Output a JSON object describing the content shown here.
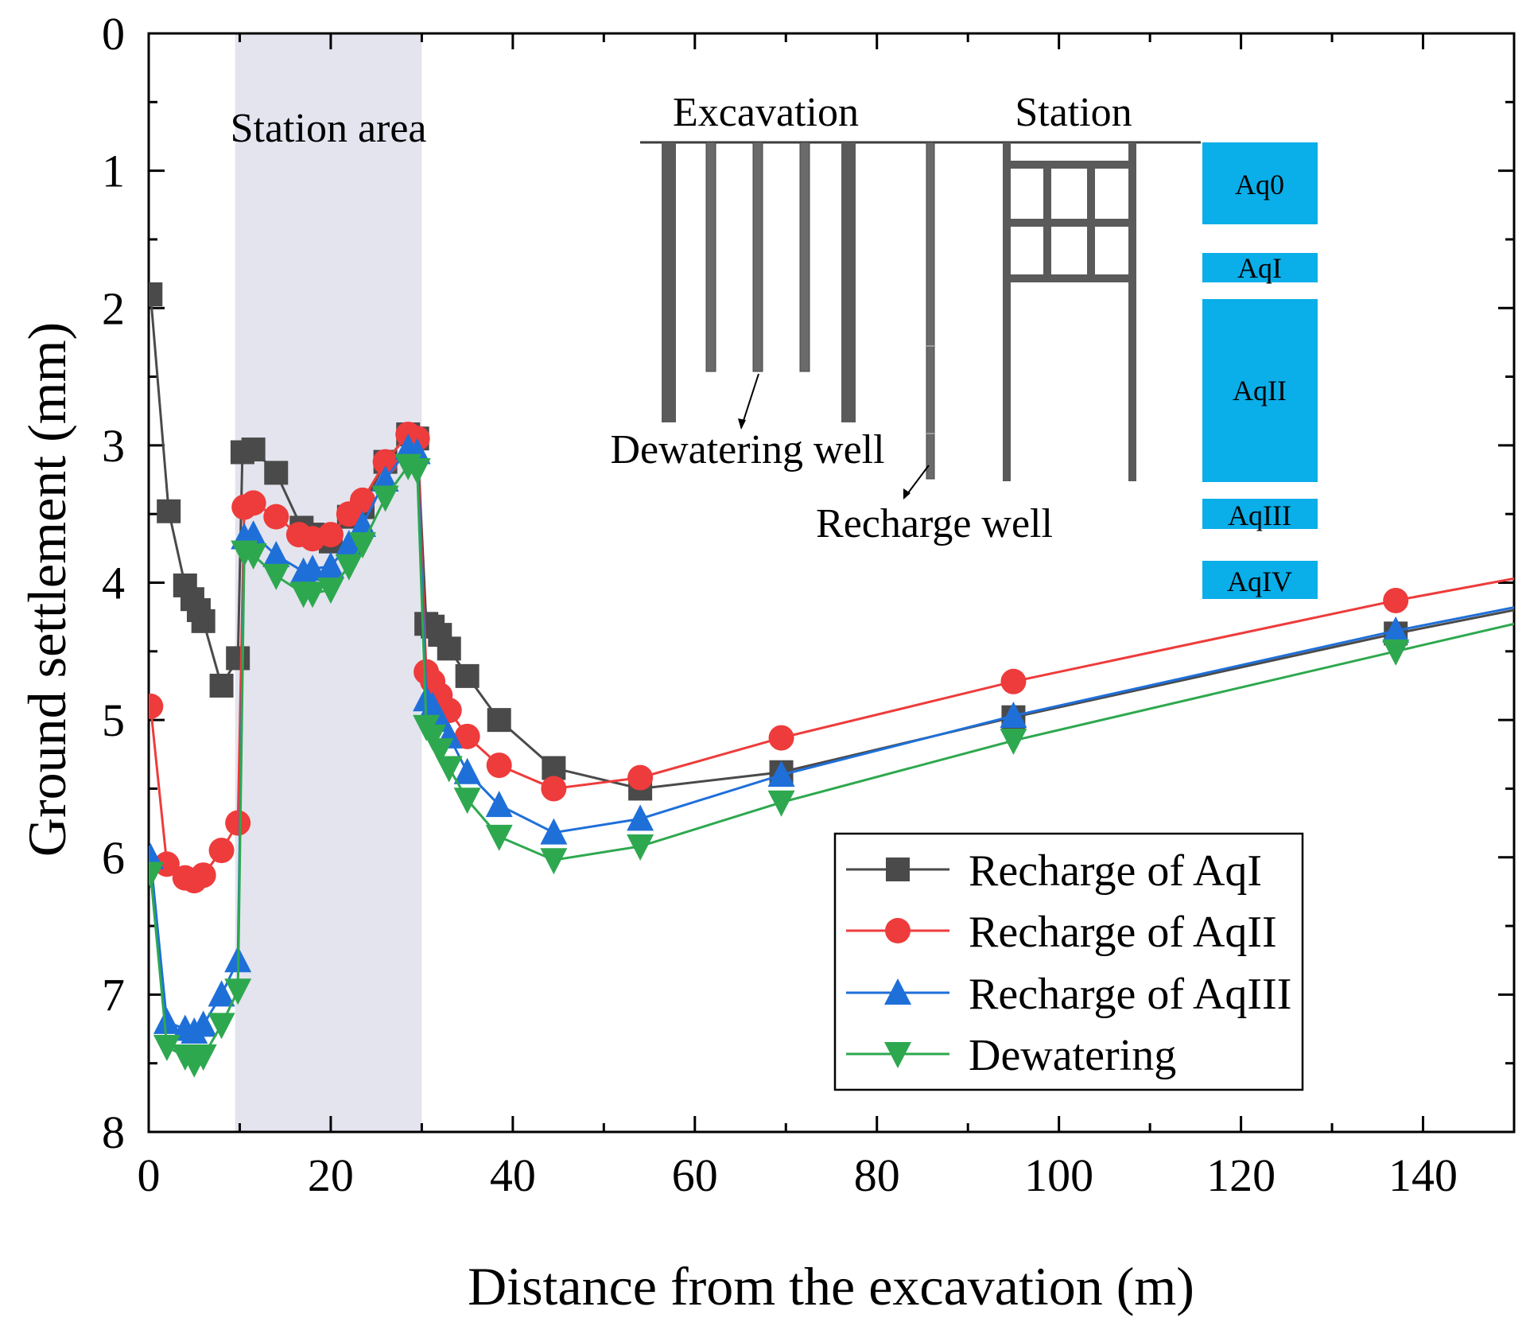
{
  "chart_data": {
    "type": "line",
    "xlabel": "Distance from the excavation (m)",
    "ylabel": "Ground settlement (mm)",
    "xlim": [
      0,
      150
    ],
    "ylim": [
      0,
      8
    ],
    "y_inverted": true,
    "x_ticks": [
      "0",
      "20",
      "40",
      "60",
      "80",
      "100",
      "120",
      "140"
    ],
    "y_ticks": [
      "0",
      "1",
      "2",
      "3",
      "4",
      "5",
      "6",
      "7",
      "8"
    ],
    "shaded_region": {
      "label": "Station area",
      "x": [
        9.5,
        30
      ],
      "color": "#e3e4ee"
    },
    "legend_position": "bottom-right",
    "series": [
      {
        "name": "Recharge of AqI",
        "color": "#4a4a4a",
        "marker": "square",
        "x": [
          0.2,
          2.2,
          4.0,
          4.8,
          5.5,
          6.0,
          8.0,
          9.8,
          10.3,
          11.5,
          14.0,
          16.8,
          18.0,
          20.0,
          22.0,
          23.5,
          26.0,
          28.5,
          29.5,
          30.5,
          31.2,
          32.0,
          33.0,
          35.0,
          38.5,
          44.5,
          54.0,
          69.5,
          95.0,
          137.0,
          150.0
        ],
        "values": [
          1.9,
          3.48,
          4.02,
          4.12,
          4.2,
          4.28,
          4.75,
          4.55,
          3.05,
          3.03,
          3.2,
          3.6,
          3.65,
          3.7,
          3.52,
          3.45,
          3.12,
          2.92,
          2.95,
          4.3,
          4.32,
          4.38,
          4.48,
          4.68,
          5.0,
          5.35,
          5.5,
          5.38,
          4.98,
          4.37,
          4.2
        ]
      },
      {
        "name": "Recharge of AqII",
        "color": "#ee3b3b",
        "marker": "circle",
        "x": [
          0.2,
          2.0,
          4.0,
          5.0,
          6.0,
          8.0,
          9.8,
          10.5,
          11.5,
          14.0,
          16.5,
          18.0,
          20.0,
          22.0,
          23.5,
          26.0,
          28.5,
          29.5,
          30.5,
          31.2,
          32.0,
          33.0,
          35.0,
          38.5,
          44.5,
          54.0,
          69.5,
          95.0,
          137.0,
          150.0
        ],
        "values": [
          4.9,
          6.05,
          6.15,
          6.17,
          6.13,
          5.95,
          5.75,
          3.45,
          3.42,
          3.52,
          3.65,
          3.68,
          3.65,
          3.5,
          3.4,
          3.12,
          2.92,
          2.95,
          4.65,
          4.72,
          4.82,
          4.93,
          5.12,
          5.33,
          5.5,
          5.42,
          5.13,
          4.72,
          4.13,
          3.97
        ]
      },
      {
        "name": "Recharge of AqIII",
        "color": "#1f6fd9",
        "marker": "triangle-up",
        "x": [
          0.2,
          2.0,
          4.0,
          5.0,
          6.0,
          8.0,
          9.8,
          10.5,
          11.5,
          14.0,
          17.0,
          18.0,
          20.0,
          22.0,
          23.5,
          26.0,
          28.5,
          29.5,
          30.5,
          31.2,
          32.0,
          33.0,
          35.0,
          38.5,
          44.5,
          54.0,
          69.5,
          95.0,
          137.0,
          150.0
        ],
        "values": [
          6.0,
          7.2,
          7.25,
          7.27,
          7.22,
          7.0,
          6.75,
          3.67,
          3.65,
          3.8,
          3.92,
          3.9,
          3.88,
          3.72,
          3.58,
          3.25,
          3.02,
          3.05,
          4.85,
          4.9,
          5.0,
          5.12,
          5.38,
          5.62,
          5.82,
          5.72,
          5.4,
          4.97,
          4.35,
          4.18
        ]
      },
      {
        "name": "Dewatering",
        "color": "#2ea84f",
        "marker": "triangle-down",
        "x": [
          0.2,
          2.0,
          4.0,
          5.0,
          6.0,
          8.0,
          9.8,
          10.5,
          11.5,
          14.0,
          17.0,
          18.0,
          20.0,
          22.0,
          23.5,
          26.0,
          28.5,
          29.5,
          30.5,
          31.2,
          32.0,
          33.0,
          35.0,
          38.5,
          44.5,
          54.0,
          69.5,
          95.0,
          137.0,
          150.0
        ],
        "values": [
          6.12,
          7.38,
          7.45,
          7.5,
          7.45,
          7.22,
          6.97,
          3.78,
          3.8,
          3.95,
          4.08,
          4.08,
          4.05,
          3.88,
          3.72,
          3.38,
          3.15,
          3.18,
          5.05,
          5.12,
          5.22,
          5.35,
          5.58,
          5.85,
          6.02,
          5.92,
          5.6,
          5.15,
          4.5,
          4.3
        ]
      }
    ],
    "inset": {
      "excavation_label": "Excavation",
      "station_label": "Station",
      "dewatering_label": "Dewatering well",
      "recharge_label": "Recharge well",
      "layers": [
        "Aq0",
        "AqI",
        "AqII",
        "AqIII",
        "AqIV"
      ],
      "layer_color": "#0aaee8"
    }
  }
}
